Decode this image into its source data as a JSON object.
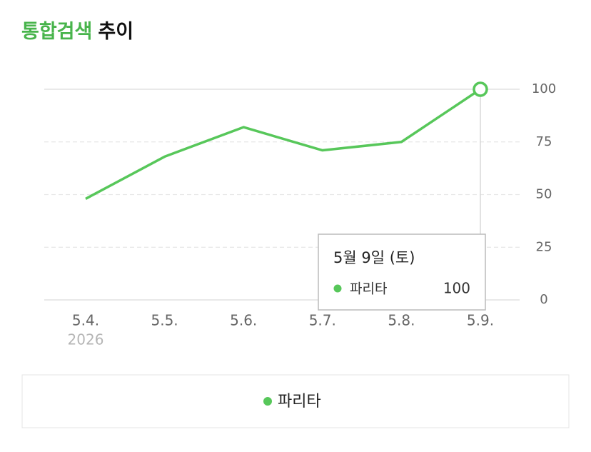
{
  "chart_data": {
    "type": "line",
    "title": {
      "keyword": "통합검색",
      "rest": "추이"
    },
    "categories": [
      "5.4.",
      "5.5.",
      "5.6.",
      "5.7.",
      "5.8.",
      "5.9."
    ],
    "year": "2026",
    "series": [
      {
        "name": "파리타",
        "color": "#57c75a",
        "values": [
          48,
          68,
          82,
          71,
          75,
          100
        ]
      }
    ],
    "ylim": [
      0,
      100
    ],
    "yticks": [
      0,
      25,
      50,
      75,
      100
    ],
    "grid": true,
    "tooltip": {
      "title": "5월 9일 (토)"
    }
  }
}
